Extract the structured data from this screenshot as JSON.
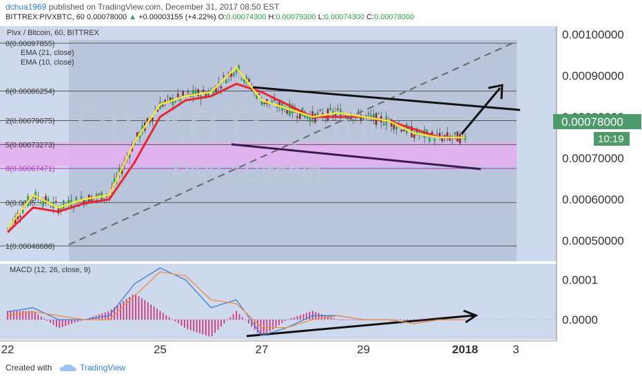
{
  "header": {
    "user": "dchua1969",
    "published_text": "published on TradingView.com, December 31, 2017 08:50 EST",
    "symbol_line": "BITTREX:PIVXBTC, 60",
    "last_value": "0.00078000",
    "change": "+0.00003155 (+4.22%)",
    "o_label": "O:",
    "o_value": "0.00074300",
    "h_label": "H:",
    "h_value": "0.00079300",
    "l_label": "L:",
    "l_value": "0.00074300",
    "c_label": "C:",
    "c_value": "0.00078000"
  },
  "legend": {
    "title": "Pivx / Bitcoin, 60, BITTREX",
    "ema21": "EMA (21, close)",
    "ema10": "EMA (10, close)",
    "macd": "MACD (12, 26, close, 9)"
  },
  "watermark": {
    "symbol": "PIVXBTC, 60",
    "name": "Pivx / Bitcoin"
  },
  "price_tag": {
    "value": "0.00078000",
    "countdown": "10:19"
  },
  "footer": {
    "created_with": "Created with",
    "brand": "TradingView"
  },
  "colors": {
    "bg": "#cfd9ed",
    "up": "#2a9d45",
    "down": "#8b2a2a",
    "ema_fast": "#f5e642",
    "ema_slow": "#e8262d",
    "fib_box": "#b0bcd4",
    "fib_zone": "#e3b0f0",
    "macd_line": "#3a7fd6",
    "signal_line": "#f28c3c",
    "hist": "#d0367a",
    "tag_green": "#4f9a6b",
    "link": "#2f7fd6"
  },
  "chart_data": {
    "type": "candlestick",
    "price_axis": {
      "ylim": [
        0.00045,
        0.00102
      ],
      "ticks": [
        "0.00100000",
        "0.00090000",
        "0.00080000",
        "0.00070000",
        "0.00060000",
        "0.00050000"
      ],
      "tick_values": [
        0.001,
        0.0009,
        0.0008,
        0.0007,
        0.0006,
        0.0005
      ]
    },
    "macd_axis": {
      "ylim": [
        -5e-05,
        0.00014
      ],
      "ticks": [
        "0.0001",
        "0.0000"
      ],
      "tick_values": [
        0.0001,
        0.0
      ]
    },
    "time_axis": {
      "ticks": [
        "22",
        "25",
        "27",
        "29",
        "2018",
        "3"
      ],
      "tick_positions": [
        0,
        3,
        5,
        7,
        9,
        10
      ],
      "xlim": [
        -0.15,
        10.8
      ]
    },
    "fib_levels": [
      {
        "label": "0(0.00097855)",
        "value": 0.00097855
      },
      {
        "label": "6(0.00086254)",
        "value": 0.00086254
      },
      {
        "label": "2(0.00079075)",
        "value": 0.00079075
      },
      {
        "label": "5(0.00073273)",
        "value": 0.00073273
      },
      {
        "label": "8(0.00067471)",
        "value": 0.00067471
      },
      {
        "label": "0(0.0005...)",
        "value": 0.00059206
      },
      {
        "label": "1(0.00048688)",
        "value": 0.00048688
      }
    ],
    "series": [
      {
        "name": "EMA (21, close)",
        "points": [
          [
            0,
            0.00052
          ],
          [
            0.5,
            0.00058
          ],
          [
            1,
            0.00057
          ],
          [
            1.5,
            0.00059
          ],
          [
            2,
            0.0006
          ],
          [
            2.5,
            0.00069
          ],
          [
            3,
            0.0008
          ],
          [
            3.5,
            0.00084
          ],
          [
            4,
            0.00085
          ],
          [
            4.5,
            0.00088
          ],
          [
            5,
            0.00086
          ],
          [
            5.5,
            0.00083
          ],
          [
            6,
            0.0008
          ],
          [
            6.5,
            0.0008
          ],
          [
            7,
            0.0008
          ],
          [
            7.5,
            0.00079
          ],
          [
            8,
            0.00077
          ],
          [
            8.5,
            0.00075
          ],
          [
            9,
            0.00075
          ]
        ]
      },
      {
        "name": "EMA (10, close)",
        "points": [
          [
            0,
            0.00053
          ],
          [
            0.5,
            0.00061
          ],
          [
            1,
            0.00058
          ],
          [
            1.5,
            0.0006
          ],
          [
            2,
            0.00061
          ],
          [
            2.5,
            0.00074
          ],
          [
            3,
            0.00083
          ],
          [
            3.5,
            0.00085
          ],
          [
            4,
            0.00086
          ],
          [
            4.5,
            0.00092
          ],
          [
            5,
            0.00084
          ],
          [
            5.5,
            0.00082
          ],
          [
            6,
            0.0008
          ],
          [
            6.5,
            0.00081
          ],
          [
            7,
            0.0008
          ],
          [
            7.5,
            0.00079
          ],
          [
            8,
            0.00076
          ],
          [
            8.5,
            0.00075
          ],
          [
            9,
            0.00075
          ]
        ]
      }
    ],
    "macd": {
      "macd_line": [
        [
          0,
          2e-05
        ],
        [
          0.5,
          3e-05
        ],
        [
          1,
          0.0
        ],
        [
          1.5,
          0.0
        ],
        [
          2,
          1e-05
        ],
        [
          2.5,
          9e-05
        ],
        [
          3,
          0.00013
        ],
        [
          3.5,
          0.0001
        ],
        [
          4,
          3e-05
        ],
        [
          4.5,
          5e-05
        ],
        [
          5,
          -4e-05
        ],
        [
          5.5,
          -2e-05
        ],
        [
          6,
          1e-05
        ],
        [
          6.5,
          1e-05
        ],
        [
          7,
          0.0
        ],
        [
          7.5,
          0.0
        ],
        [
          8,
          -1e-05
        ],
        [
          8.5,
          0.0
        ],
        [
          9,
          0.0
        ]
      ],
      "signal_line": [
        [
          0,
          1e-05
        ],
        [
          0.5,
          2e-05
        ],
        [
          1,
          1e-05
        ],
        [
          1.5,
          0.0
        ],
        [
          2,
          0.0
        ],
        [
          2.5,
          6e-05
        ],
        [
          3,
          0.00012
        ],
        [
          3.5,
          0.00011
        ],
        [
          4,
          5e-05
        ],
        [
          4.5,
          4e-05
        ],
        [
          5,
          -2e-05
        ],
        [
          5.5,
          -2e-05
        ],
        [
          6,
          0.0
        ],
        [
          6.5,
          1e-05
        ],
        [
          7,
          0.0
        ],
        [
          7.5,
          0.0
        ],
        [
          8,
          -1e-05
        ],
        [
          8.5,
          0.0
        ],
        [
          9,
          0.0
        ]
      ]
    }
  }
}
